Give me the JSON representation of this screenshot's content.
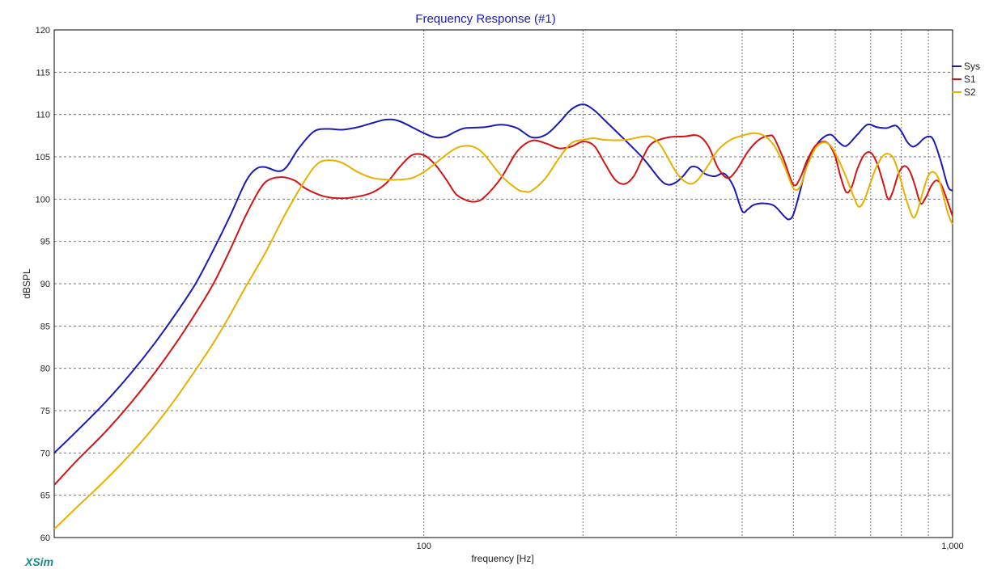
{
  "colors": {
    "Sys": "#1a1ab8",
    "S1": "#d21414",
    "S2": "#e8b000",
    "title": "#1a1ab8",
    "brand": "#138a8a"
  },
  "brand": "XSim",
  "chart_data": {
    "type": "line",
    "title": "Frequency Response (#1)",
    "xlabel": "frequency [Hz]",
    "ylabel": "dBSPL",
    "x_scale": "log",
    "xlim": [
      20,
      1000
    ],
    "ylim": [
      60,
      120
    ],
    "y_ticks": [
      60,
      65,
      70,
      75,
      80,
      85,
      90,
      95,
      100,
      105,
      110,
      115,
      120
    ],
    "x_tick_labels": [
      {
        "value": 100,
        "label": "100"
      },
      {
        "value": 1000,
        "label": "1,000"
      }
    ],
    "x_gridlines": [
      100,
      200,
      300,
      400,
      500,
      600,
      700,
      800,
      900,
      1000
    ],
    "grid": true,
    "legend_position": "right",
    "series": [
      {
        "name": "Sys",
        "points": [
          [
            20,
            70
          ],
          [
            22,
            72.5
          ],
          [
            25,
            76
          ],
          [
            28,
            79.5
          ],
          [
            31,
            83
          ],
          [
            34,
            86.5
          ],
          [
            37,
            90
          ],
          [
            40,
            94
          ],
          [
            43,
            98
          ],
          [
            46,
            102
          ],
          [
            48,
            103.5
          ],
          [
            50,
            103.8
          ],
          [
            53,
            103.3
          ],
          [
            55,
            103.8
          ],
          [
            58,
            106
          ],
          [
            62,
            108
          ],
          [
            66,
            108.3
          ],
          [
            70,
            108.2
          ],
          [
            75,
            108.5
          ],
          [
            80,
            109
          ],
          [
            85,
            109.4
          ],
          [
            90,
            109.2
          ],
          [
            100,
            107.8
          ],
          [
            105,
            107.3
          ],
          [
            110,
            107.4
          ],
          [
            115,
            108
          ],
          [
            120,
            108.4
          ],
          [
            130,
            108.5
          ],
          [
            140,
            108.8
          ],
          [
            150,
            108.4
          ],
          [
            160,
            107.3
          ],
          [
            170,
            107.6
          ],
          [
            180,
            109
          ],
          [
            190,
            110.6
          ],
          [
            200,
            111.2
          ],
          [
            210,
            110.5
          ],
          [
            220,
            109.3
          ],
          [
            240,
            107
          ],
          [
            260,
            104.8
          ],
          [
            280,
            102.3
          ],
          [
            290,
            101.7
          ],
          [
            300,
            102
          ],
          [
            310,
            102.8
          ],
          [
            320,
            103.8
          ],
          [
            330,
            103.7
          ],
          [
            340,
            103
          ],
          [
            355,
            102.7
          ],
          [
            370,
            103
          ],
          [
            385,
            101.5
          ],
          [
            400,
            98.6
          ],
          [
            410,
            98.8
          ],
          [
            420,
            99.3
          ],
          [
            440,
            99.5
          ],
          [
            460,
            99.2
          ],
          [
            480,
            98
          ],
          [
            490,
            97.6
          ],
          [
            500,
            98.2
          ],
          [
            515,
            101
          ],
          [
            530,
            104
          ],
          [
            550,
            106.2
          ],
          [
            570,
            107.3
          ],
          [
            590,
            107.6
          ],
          [
            610,
            106.7
          ],
          [
            630,
            106.3
          ],
          [
            660,
            107.6
          ],
          [
            690,
            108.8
          ],
          [
            720,
            108.5
          ],
          [
            750,
            108.4
          ],
          [
            780,
            108.7
          ],
          [
            800,
            108
          ],
          [
            820,
            106.8
          ],
          [
            840,
            106.2
          ],
          [
            860,
            106.5
          ],
          [
            880,
            107.1
          ],
          [
            900,
            107.4
          ],
          [
            920,
            107
          ],
          [
            950,
            104.5
          ],
          [
            980,
            101.5
          ],
          [
            1000,
            101
          ]
        ]
      },
      {
        "name": "S1",
        "points": [
          [
            20,
            66.2
          ],
          [
            22,
            69
          ],
          [
            25,
            72.5
          ],
          [
            28,
            76
          ],
          [
            31,
            79.5
          ],
          [
            34,
            83
          ],
          [
            37,
            86.5
          ],
          [
            40,
            90
          ],
          [
            43,
            94
          ],
          [
            46,
            98
          ],
          [
            49,
            101.2
          ],
          [
            51,
            102.3
          ],
          [
            54,
            102.6
          ],
          [
            57,
            102.2
          ],
          [
            60,
            101.2
          ],
          [
            65,
            100.3
          ],
          [
            70,
            100.1
          ],
          [
            75,
            100.3
          ],
          [
            80,
            100.8
          ],
          [
            85,
            101.9
          ],
          [
            90,
            103.8
          ],
          [
            95,
            105.2
          ],
          [
            100,
            105.2
          ],
          [
            105,
            104.1
          ],
          [
            110,
            102.4
          ],
          [
            115,
            100.6
          ],
          [
            120,
            99.9
          ],
          [
            125,
            99.7
          ],
          [
            130,
            100.2
          ],
          [
            140,
            102.5
          ],
          [
            150,
            105.6
          ],
          [
            160,
            106.9
          ],
          [
            170,
            106.6
          ],
          [
            180,
            106
          ],
          [
            190,
            106.2
          ],
          [
            200,
            106.8
          ],
          [
            210,
            106.3
          ],
          [
            220,
            104.2
          ],
          [
            230,
            102.3
          ],
          [
            240,
            101.8
          ],
          [
            250,
            102.8
          ],
          [
            260,
            105
          ],
          [
            270,
            106.6
          ],
          [
            290,
            107.3
          ],
          [
            310,
            107.4
          ],
          [
            330,
            107.5
          ],
          [
            345,
            106.3
          ],
          [
            360,
            103.7
          ],
          [
            375,
            102.5
          ],
          [
            390,
            103.4
          ],
          [
            410,
            105.6
          ],
          [
            430,
            107
          ],
          [
            450,
            107.5
          ],
          [
            460,
            107.2
          ],
          [
            480,
            104.6
          ],
          [
            500,
            101.7
          ],
          [
            515,
            102.5
          ],
          [
            530,
            104.5
          ],
          [
            550,
            106.3
          ],
          [
            570,
            106.8
          ],
          [
            585,
            106.4
          ],
          [
            600,
            105
          ],
          [
            615,
            102.5
          ],
          [
            630,
            100.8
          ],
          [
            645,
            101.5
          ],
          [
            660,
            103.5
          ],
          [
            680,
            105.2
          ],
          [
            700,
            105.5
          ],
          [
            720,
            104.2
          ],
          [
            740,
            101.8
          ],
          [
            755,
            100
          ],
          [
            770,
            100.8
          ],
          [
            790,
            103
          ],
          [
            810,
            103.9
          ],
          [
            830,
            103.3
          ],
          [
            850,
            101.5
          ],
          [
            870,
            99.5
          ],
          [
            890,
            100.2
          ],
          [
            910,
            101.5
          ],
          [
            930,
            102.2
          ],
          [
            950,
            101.8
          ],
          [
            975,
            100
          ],
          [
            1000,
            98
          ]
        ]
      },
      {
        "name": "S2",
        "points": [
          [
            20,
            61
          ],
          [
            22,
            63.5
          ],
          [
            25,
            66.8
          ],
          [
            28,
            70
          ],
          [
            31,
            73.2
          ],
          [
            34,
            76.5
          ],
          [
            37,
            79.8
          ],
          [
            40,
            83
          ],
          [
            43,
            86.3
          ],
          [
            46,
            89.6
          ],
          [
            50,
            93.5
          ],
          [
            55,
            98.5
          ],
          [
            60,
            102.5
          ],
          [
            63,
            104.2
          ],
          [
            66,
            104.6
          ],
          [
            70,
            104.3
          ],
          [
            75,
            103.2
          ],
          [
            80,
            102.5
          ],
          [
            85,
            102.3
          ],
          [
            90,
            102.3
          ],
          [
            95,
            102.5
          ],
          [
            100,
            103.2
          ],
          [
            105,
            104.2
          ],
          [
            110,
            105.2
          ],
          [
            115,
            106
          ],
          [
            120,
            106.3
          ],
          [
            125,
            106.1
          ],
          [
            130,
            105.3
          ],
          [
            140,
            102.8
          ],
          [
            150,
            101.2
          ],
          [
            155,
            100.9
          ],
          [
            160,
            101
          ],
          [
            170,
            102.5
          ],
          [
            180,
            104.8
          ],
          [
            190,
            106.6
          ],
          [
            200,
            107
          ],
          [
            210,
            107.2
          ],
          [
            220,
            107
          ],
          [
            240,
            107
          ],
          [
            260,
            107.4
          ],
          [
            270,
            107.3
          ],
          [
            280,
            106.4
          ],
          [
            290,
            104.8
          ],
          [
            300,
            103.2
          ],
          [
            310,
            102.2
          ],
          [
            320,
            101.8
          ],
          [
            330,
            102.3
          ],
          [
            345,
            104
          ],
          [
            360,
            105.8
          ],
          [
            380,
            107
          ],
          [
            400,
            107.5
          ],
          [
            420,
            107.8
          ],
          [
            440,
            107.5
          ],
          [
            460,
            106.3
          ],
          [
            480,
            104
          ],
          [
            500,
            101.3
          ],
          [
            515,
            101.5
          ],
          [
            530,
            103.8
          ],
          [
            550,
            106
          ],
          [
            570,
            106.7
          ],
          [
            590,
            106.2
          ],
          [
            610,
            104.5
          ],
          [
            630,
            102.5
          ],
          [
            650,
            100.3
          ],
          [
            665,
            99.1
          ],
          [
            680,
            99.8
          ],
          [
            700,
            102
          ],
          [
            720,
            104
          ],
          [
            745,
            105.3
          ],
          [
            770,
            105
          ],
          [
            790,
            103.2
          ],
          [
            810,
            100.8
          ],
          [
            830,
            98.7
          ],
          [
            845,
            97.8
          ],
          [
            860,
            98.8
          ],
          [
            880,
            101
          ],
          [
            900,
            102.8
          ],
          [
            920,
            103.2
          ],
          [
            940,
            102.5
          ],
          [
            960,
            100.5
          ],
          [
            980,
            98.3
          ],
          [
            1000,
            97
          ]
        ]
      }
    ]
  }
}
